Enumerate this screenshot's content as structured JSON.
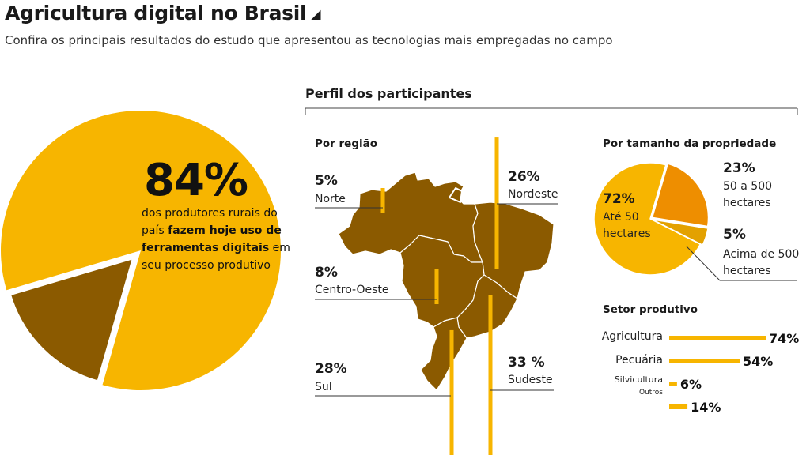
{
  "header": {
    "title": "Agricultura digital no Brasil",
    "title_icon": "triangle-corner-icon",
    "subtitle": "Confira os principais resultados do estudo que apresentou as tecnologias mais empregadas no campo"
  },
  "colors": {
    "yellow": "#F7B500",
    "brown": "#8B5A00",
    "orange": "#EE8E00",
    "mustard": "#E3A100"
  },
  "headline": {
    "percent": "84%",
    "text_1": "dos produtores rurais do país",
    "text_bold": "fazem hoje uso de ferramentas digitais",
    "text_2": "em seu processo produtivo"
  },
  "profile": {
    "title": "Perfil dos participantes",
    "region_title": "Por região",
    "size_title": "Por tamanho da propriedade",
    "sector_title": "Setor produtivo"
  },
  "chart_data": [
    {
      "type": "pie",
      "title": "",
      "slices": [
        {
          "label": "usam ferramentas digitais",
          "value": 84,
          "color": "#F7B500"
        },
        {
          "label": "",
          "value": 16,
          "color": "#8B5A00"
        }
      ]
    },
    {
      "type": "bar",
      "title": "Por região",
      "categories": [
        "Norte",
        "Nordeste",
        "Centro-Oeste",
        "Sul",
        "Sudeste"
      ],
      "values": [
        5,
        26,
        8,
        28,
        33
      ],
      "value_labels": [
        "5%",
        "26%",
        "8%",
        "28%",
        "33 %"
      ]
    },
    {
      "type": "pie",
      "title": "Por tamanho da propriedade",
      "slices": [
        {
          "label": "Até 50 hectares",
          "value": 72,
          "value_label": "72%",
          "color": "#F7B500"
        },
        {
          "label": "50 a 500 hectares",
          "value": 23,
          "value_label": "23%",
          "color": "#EE8E00"
        },
        {
          "label": "Acima de 500 hectares",
          "value": 5,
          "value_label": "5%",
          "color": "#E3A100"
        }
      ]
    },
    {
      "type": "bar",
      "title": "Setor produtivo",
      "categories": [
        "Agricultura",
        "Pecuária",
        "Silvicultura",
        "Outros"
      ],
      "values": [
        74,
        54,
        6,
        14
      ],
      "value_labels": [
        "74%",
        "54%",
        "6%",
        "14%"
      ]
    }
  ]
}
